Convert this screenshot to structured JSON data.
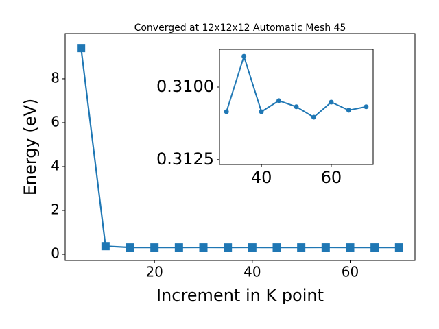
{
  "chart_data": [
    {
      "type": "line",
      "title": "Converged at 12x12x12 Automatic Mesh 45",
      "xlabel": "Increment in K point",
      "ylabel": "Energy (eV)",
      "x": [
        5,
        10,
        15,
        20,
        25,
        30,
        35,
        40,
        45,
        50,
        55,
        60,
        65,
        70
      ],
      "series": [
        {
          "color": "#1f77b4",
          "marker": "square",
          "values": [
            9.4,
            0.37,
            0.31,
            0.31,
            0.31,
            0.31085,
            0.30894,
            0.31085,
            0.31047,
            0.31068,
            0.31104,
            0.31052,
            0.3108,
            0.31068
          ]
        }
      ],
      "xlim": [
        1.75,
        73.25
      ],
      "ylim": [
        -0.28,
        10.06
      ],
      "xticks": [
        20,
        40,
        60
      ],
      "yticks": [
        0,
        2,
        4,
        6,
        8
      ]
    },
    {
      "type": "line",
      "x": [
        30,
        35,
        40,
        45,
        50,
        55,
        60,
        65,
        70
      ],
      "series": [
        {
          "color": "#1f77b4",
          "marker": "circle",
          "values": [
            0.31085,
            0.30894,
            0.31085,
            0.31047,
            0.31068,
            0.31104,
            0.31052,
            0.3108,
            0.31068
          ]
        }
      ],
      "xlim": [
        28,
        72
      ],
      "ylim": [
        0.31267,
        0.3087
      ],
      "xticks": [
        40,
        60
      ],
      "yticks": [
        {
          "value": 0.31,
          "label": "0.3100"
        },
        {
          "value": 0.3125,
          "label": "0.3125"
        }
      ]
    }
  ]
}
